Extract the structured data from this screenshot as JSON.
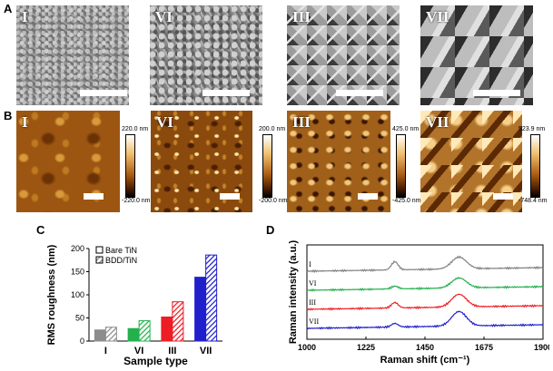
{
  "panels": {
    "a": {
      "letter": "A",
      "sem_labels": [
        "I",
        "VI",
        "III",
        "VII"
      ]
    },
    "b": {
      "letter": "B",
      "afm_labels": [
        "I",
        "VI",
        "III",
        "VII"
      ],
      "scales": [
        {
          "max": "220.0 nm",
          "min": "-220.0 nm"
        },
        {
          "max": "200.0 nm",
          "min": "-200.0 nm"
        },
        {
          "max": "425.0 nm",
          "min": "-425.0 nm"
        },
        {
          "max": "523.9 nm",
          "min": "-748.4 nm"
        }
      ]
    },
    "c": {
      "letter": "C"
    },
    "d": {
      "letter": "D"
    }
  },
  "chart_data": [
    {
      "type": "bar",
      "ylabel": "RMS roughness (nm)",
      "xlabel": "Sample type",
      "categories": [
        "I",
        "VI",
        "III",
        "VII"
      ],
      "ylim": [
        0,
        200
      ],
      "yticks": [
        "0",
        "50",
        "100",
        "150",
        "200"
      ],
      "legend": [
        "Bare TiN",
        "BDD/TiN"
      ],
      "series": [
        {
          "name": "Bare TiN",
          "values": [
            24,
            27,
            52,
            138
          ]
        },
        {
          "name": "BDD/TiN",
          "values": [
            30,
            44,
            85,
            186
          ]
        }
      ],
      "colors": [
        "#8c8c8c",
        "#22b14c",
        "#ee1c24",
        "#1f1fcc"
      ]
    },
    {
      "type": "line",
      "ylabel": "Raman intensity (a.u.)",
      "xlabel": "Raman shift (cm⁻¹)",
      "xlim": [
        1000,
        1900
      ],
      "xticks": [
        "1000",
        "1225",
        "1450",
        "1675",
        "1900"
      ],
      "series": [
        {
          "name": "I",
          "color": "#808080",
          "offset": 3.0
        },
        {
          "name": "VI",
          "color": "#22b14c",
          "offset": 2.0
        },
        {
          "name": "III",
          "color": "#ee1c24",
          "offset": 1.0
        },
        {
          "name": "VII",
          "color": "#1f1fcc",
          "offset": 0.0
        }
      ],
      "peaks": [
        1335,
        1580
      ]
    }
  ]
}
